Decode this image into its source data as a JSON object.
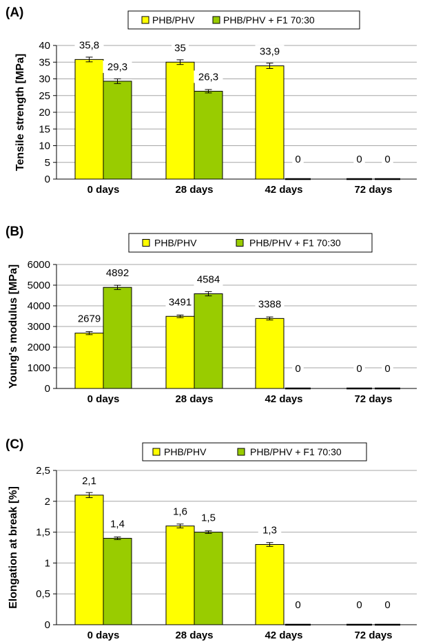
{
  "chart_data": [
    {
      "type": "bar",
      "panel": "(A)",
      "ylabel": "Tensile strength  [MPa]",
      "categories": [
        "0 days",
        "28 days",
        "42 days",
        "72 days"
      ],
      "ylim": [
        0,
        40
      ],
      "yticks": [
        "0",
        "5",
        "10",
        "15",
        "20",
        "25",
        "30",
        "35",
        "40"
      ],
      "ytick_values": [
        0,
        5,
        10,
        15,
        20,
        25,
        30,
        35,
        40
      ],
      "grid": true,
      "legend_position": "top",
      "series": [
        {
          "name": "PHB/PHV",
          "color": "#ffff00",
          "values": [
            35.8,
            35,
            33.9,
            0
          ],
          "labels": [
            "35,8",
            "35",
            "33,9",
            "0"
          ],
          "errors": [
            0.5,
            0.5,
            0.6,
            0
          ]
        },
        {
          "name": "PHB/PHV + F1 70:30",
          "color": "#99cc00",
          "values": [
            29.3,
            26.3,
            0,
            0
          ],
          "labels": [
            "29,3",
            "26,3",
            "0",
            "0"
          ],
          "errors": [
            0.5,
            0.3,
            0,
            0
          ]
        }
      ]
    },
    {
      "type": "bar",
      "panel": "(B)",
      "ylabel": "Young's modulus  [MPa]",
      "categories": [
        "0 days",
        "28 days",
        "42 days",
        "72 days"
      ],
      "ylim": [
        0,
        6000
      ],
      "yticks": [
        "0",
        "1000",
        "2000",
        "3000",
        "4000",
        "5000",
        "6000"
      ],
      "ytick_values": [
        0,
        1000,
        2000,
        3000,
        4000,
        5000,
        6000
      ],
      "grid": true,
      "legend_position": "top",
      "series": [
        {
          "name": "PHB/PHV",
          "color": "#ffff00",
          "values": [
            2679,
            3491,
            3388,
            0
          ],
          "labels": [
            "2679",
            "3491",
            "3388",
            "0"
          ],
          "errors": [
            40,
            30,
            40,
            0
          ]
        },
        {
          "name": "PHB/PHV + F1 70:30",
          "color": "#99cc00",
          "values": [
            4892,
            4584,
            0,
            0
          ],
          "labels": [
            "4892",
            "4584",
            "0",
            "0"
          ],
          "errors": [
            70,
            70,
            0,
            0
          ]
        }
      ]
    },
    {
      "type": "bar",
      "panel": "(C)",
      "ylabel": "Elongation at break  [%]",
      "categories": [
        "0 days",
        "28 days",
        "42 days",
        "72 days"
      ],
      "ylim": [
        0,
        2.5
      ],
      "yticks": [
        "0",
        "0,5",
        "1",
        "1,5",
        "2",
        "2,5"
      ],
      "ytick_values": [
        0,
        0.5,
        1,
        1.5,
        2,
        2.5
      ],
      "grid": true,
      "legend_position": "top",
      "series": [
        {
          "name": "PHB/PHV",
          "color": "#ffff00",
          "values": [
            2.1,
            1.6,
            1.3,
            0
          ],
          "labels": [
            "2,1",
            "1,6",
            "1,3",
            "0"
          ],
          "errors": [
            0.03,
            0.02,
            0.02,
            0
          ]
        },
        {
          "name": "PHB/PHV + F1 70:30",
          "color": "#99cc00",
          "values": [
            1.4,
            1.5,
            0,
            0
          ],
          "labels": [
            "1,4",
            "1,5",
            "0",
            "0"
          ],
          "errors": [
            0.01,
            0.01,
            0,
            0
          ]
        }
      ]
    }
  ]
}
